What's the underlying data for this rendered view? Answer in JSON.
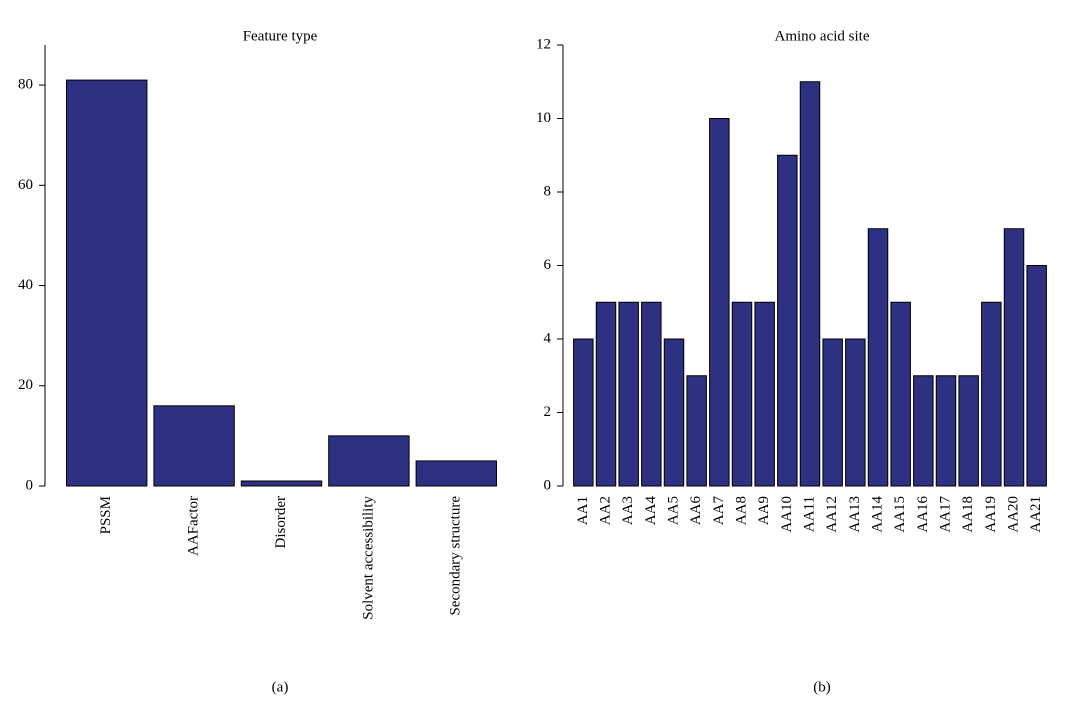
{
  "chart_data": [
    {
      "type": "bar",
      "title": "Feature type",
      "caption": "(a)",
      "categories": [
        "PSSM",
        "AAFactor",
        "Disorder",
        "Solvent accessibility",
        "Secondary structure"
      ],
      "values": [
        81,
        16,
        1,
        10,
        5
      ],
      "color": "#2e3182",
      "ylim": [
        0,
        88
      ],
      "yticks": [
        0,
        20,
        40,
        60,
        80
      ]
    },
    {
      "type": "bar",
      "title": "Amino acid site",
      "caption": "(b)",
      "categories": [
        "AA1",
        "AA2",
        "AA3",
        "AA4",
        "AA5",
        "AA6",
        "AA7",
        "AA8",
        "AA9",
        "AA10",
        "AA11",
        "AA12",
        "AA13",
        "AA14",
        "AA15",
        "AA16",
        "AA17",
        "AA18",
        "AA19",
        "AA20",
        "AA21"
      ],
      "values": [
        4,
        5,
        5,
        5,
        4,
        3,
        10,
        5,
        5,
        9,
        11,
        4,
        4,
        7,
        5,
        3,
        3,
        3,
        5,
        7,
        6
      ],
      "color": "#2e3182",
      "ylim": [
        0,
        12
      ],
      "yticks": [
        0,
        2,
        4,
        6,
        8,
        10,
        12
      ]
    }
  ]
}
